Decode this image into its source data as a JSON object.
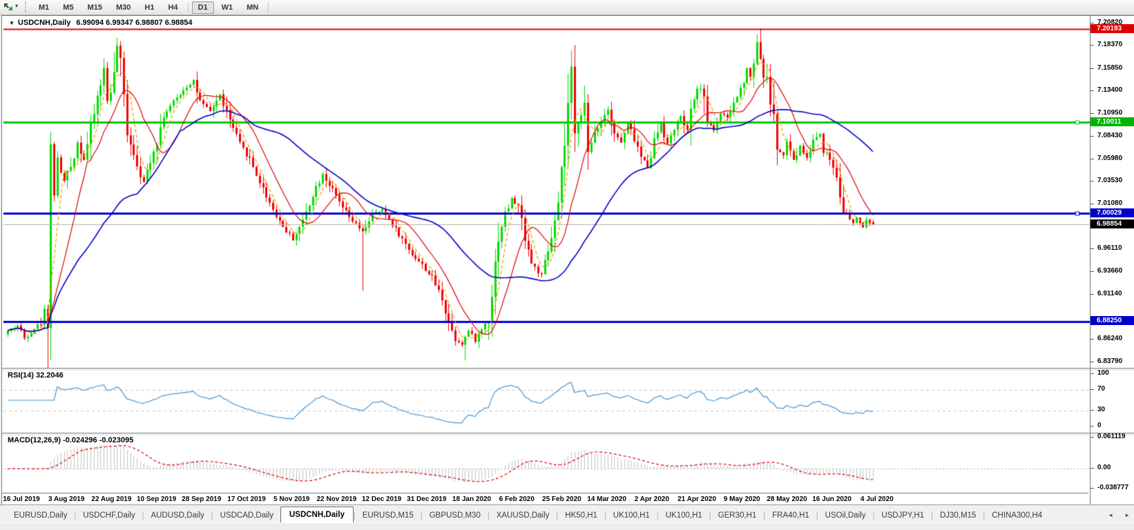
{
  "toolbar": {
    "chart_tool_icon": "chart-shift-arrows",
    "dropdown_caret": "▾",
    "timeframes": [
      "M1",
      "M5",
      "M15",
      "M30",
      "H1",
      "H4",
      "D1",
      "W1",
      "MN"
    ],
    "active_timeframe": "D1"
  },
  "chart": {
    "dropdown_marker": "▼",
    "title_symbol": "USDCNH,Daily",
    "title_ohlc": "6.99094 6.99347 6.98807 6.98854",
    "price_axis_ticks": [
      "7.20820",
      "7.18370",
      "7.15850",
      "7.13400",
      "7.10950",
      "7.08430",
      "7.05980",
      "7.03530",
      "7.01080",
      "6.96110",
      "6.93660",
      "6.91140",
      "6.86240",
      "6.83790"
    ],
    "price_badges": [
      {
        "label": "7.20193",
        "price": 7.20193,
        "bg": "#dd0000"
      },
      {
        "label": "7.10011",
        "price": 7.10011,
        "bg": "#00b400"
      },
      {
        "label": "7.00029",
        "price": 7.00029,
        "bg": "#0000c8"
      },
      {
        "label": "6.98854",
        "price": 6.98854,
        "bg": "#000000"
      },
      {
        "label": "6.88250",
        "price": 6.8825,
        "bg": "#0000c8"
      }
    ],
    "date_labels": [
      "16 Jul 2019",
      "3 Aug 2019",
      "22 Aug 2019",
      "10 Sep 2019",
      "28 Sep 2019",
      "17 Oct 2019",
      "5 Nov 2019",
      "22 Nov 2019",
      "12 Dec 2019",
      "31 Dec 2019",
      "18 Jan 2020",
      "6 Feb 2020",
      "25 Feb 2020",
      "14 Mar 2020",
      "2 Apr 2020",
      "21 Apr 2020",
      "9 May 2020",
      "28 May 2020",
      "16 Jun 2020",
      "4 Jul 2020"
    ]
  },
  "rsi_panel": {
    "label": "RSI(14) 32.2046",
    "ticks": [
      "100",
      "70",
      "30",
      "0"
    ],
    "level_values": [
      70,
      30
    ],
    "line_color": "#3f93d6",
    "current_value": 32.2046
  },
  "macd_panel": {
    "label": "MACD(12,26,9) -0.024296 -0.023095",
    "ticks": [
      "0.061119",
      "0.00",
      "-0.038777"
    ],
    "histogram_color": "#c2c2c2",
    "signal_color": "#dd0000",
    "current_values": [
      -0.024296,
      -0.023095
    ]
  },
  "tabs": {
    "items": [
      "EURUSD,Daily",
      "USDCHF,Daily",
      "AUDUSD,Daily",
      "USDCAD,Daily",
      "USDCNH,Daily",
      "EURUSD,M15",
      "GBPUSD,M30",
      "XAUUSD,Daily",
      "HK50,H1",
      "UK100,H1",
      "UK100,H1",
      "GER30,H1",
      "FRA40,H1",
      "USOil,Daily",
      "USDJPY,H1",
      "DJ30,M15",
      "CHINA300,H4"
    ],
    "active_index": 4,
    "scroll_left": "◄",
    "scroll_right": "►"
  },
  "chart_data": {
    "type": "candlestick",
    "symbol": "USDCNH",
    "timeframe": "Daily",
    "visible_price_range": [
      6.8316,
      7.215
    ],
    "num_candles": 262,
    "last_candle_ohlc": [
      6.99094,
      6.99347,
      6.98807,
      6.98854
    ],
    "up_color": "#00dd00",
    "down_color": "#f40000",
    "close_path_anchors": [
      [
        0,
        6.872
      ],
      [
        3,
        6.878
      ],
      [
        5,
        6.864
      ],
      [
        8,
        6.875
      ],
      [
        10,
        6.881
      ],
      [
        12,
        6.905
      ],
      [
        13,
        7.072
      ],
      [
        14,
        7.022
      ],
      [
        15,
        7.058
      ],
      [
        17,
        7.036
      ],
      [
        19,
        7.052
      ],
      [
        21,
        7.078
      ],
      [
        23,
        7.06
      ],
      [
        25,
        7.092
      ],
      [
        27,
        7.128
      ],
      [
        29,
        7.158
      ],
      [
        30,
        7.124
      ],
      [
        32,
        7.15
      ],
      [
        33,
        7.184
      ],
      [
        34,
        7.16
      ],
      [
        36,
        7.092
      ],
      [
        38,
        7.066
      ],
      [
        41,
        7.034
      ],
      [
        43,
        7.06
      ],
      [
        45,
        7.08
      ],
      [
        47,
        7.108
      ],
      [
        50,
        7.122
      ],
      [
        53,
        7.136
      ],
      [
        56,
        7.146
      ],
      [
        58,
        7.122
      ],
      [
        61,
        7.112
      ],
      [
        64,
        7.13
      ],
      [
        67,
        7.102
      ],
      [
        70,
        7.076
      ],
      [
        73,
        7.06
      ],
      [
        76,
        7.035
      ],
      [
        80,
        7.005
      ],
      [
        83,
        6.986
      ],
      [
        86,
        6.972
      ],
      [
        89,
        6.992
      ],
      [
        92,
        7.022
      ],
      [
        95,
        7.044
      ],
      [
        97,
        7.032
      ],
      [
        100,
        7.012
      ],
      [
        103,
        6.996
      ],
      [
        107,
        6.98
      ],
      [
        110,
        7.0
      ],
      [
        113,
        7.004
      ],
      [
        116,
        6.989
      ],
      [
        119,
        6.972
      ],
      [
        122,
        6.956
      ],
      [
        125,
        6.944
      ],
      [
        128,
        6.93
      ],
      [
        131,
        6.908
      ],
      [
        133,
        6.882
      ],
      [
        135,
        6.863
      ],
      [
        137,
        6.858
      ],
      [
        139,
        6.872
      ],
      [
        141,
        6.861
      ],
      [
        143,
        6.874
      ],
      [
        145,
        6.886
      ],
      [
        147,
        6.945
      ],
      [
        148,
        6.975
      ],
      [
        150,
        7.0
      ],
      [
        152,
        7.016
      ],
      [
        154,
        7.008
      ],
      [
        156,
        6.976
      ],
      [
        158,
        6.946
      ],
      [
        161,
        6.932
      ],
      [
        163,
        6.958
      ],
      [
        166,
        7.006
      ],
      [
        168,
        7.075
      ],
      [
        169,
        7.118
      ],
      [
        170,
        7.154
      ],
      [
        171,
        7.082
      ],
      [
        172,
        7.104
      ],
      [
        174,
        7.118
      ],
      [
        175,
        7.062
      ],
      [
        177,
        7.09
      ],
      [
        179,
        7.102
      ],
      [
        181,
        7.116
      ],
      [
        183,
        7.088
      ],
      [
        185,
        7.078
      ],
      [
        187,
        7.098
      ],
      [
        189,
        7.082
      ],
      [
        191,
        7.062
      ],
      [
        193,
        7.052
      ],
      [
        195,
        7.08
      ],
      [
        197,
        7.1
      ],
      [
        199,
        7.076
      ],
      [
        201,
        7.094
      ],
      [
        203,
        7.106
      ],
      [
        205,
        7.09
      ],
      [
        207,
        7.128
      ],
      [
        209,
        7.14
      ],
      [
        211,
        7.102
      ],
      [
        213,
        7.092
      ],
      [
        215,
        7.11
      ],
      [
        217,
        7.104
      ],
      [
        219,
        7.121
      ],
      [
        221,
        7.136
      ],
      [
        223,
        7.16
      ],
      [
        224,
        7.149
      ],
      [
        226,
        7.188
      ],
      [
        228,
        7.152
      ],
      [
        229,
        7.146
      ],
      [
        231,
        7.104
      ],
      [
        232,
        7.072
      ],
      [
        234,
        7.062
      ],
      [
        235,
        7.079
      ],
      [
        237,
        7.058
      ],
      [
        239,
        7.074
      ],
      [
        241,
        7.061
      ],
      [
        243,
        7.081
      ],
      [
        245,
        7.088
      ],
      [
        246,
        7.071
      ],
      [
        248,
        7.06
      ],
      [
        250,
        7.042
      ],
      [
        252,
        7.005
      ],
      [
        253,
        6.998
      ],
      [
        255,
        6.989
      ],
      [
        256,
        6.996
      ],
      [
        258,
        6.985
      ],
      [
        259,
        6.992
      ],
      [
        261,
        6.98854
      ]
    ],
    "wick_overrides": [
      [
        13,
        "low",
        6.902
      ],
      [
        33,
        "high",
        7.1925
      ],
      [
        107,
        "low",
        6.916
      ],
      [
        138,
        "low",
        6.8395
      ],
      [
        170,
        "high",
        7.166
      ],
      [
        226,
        "high",
        7.1965
      ]
    ],
    "horizontal_lines": [
      {
        "price": 7.20193,
        "color": "#dd0000",
        "width": 2
      },
      {
        "price": 7.10011,
        "color": "#00ca00",
        "width": 3,
        "marker": true
      },
      {
        "price": 7.00029,
        "color": "#0000d4",
        "width": 3,
        "marker": true
      },
      {
        "price": 6.98854,
        "color": "#b4b4b4",
        "width": 1
      },
      {
        "price": 6.8825,
        "color": "#0000d4",
        "width": 3
      }
    ],
    "moving_averages": [
      {
        "period": 5,
        "color": "#eb9c00",
        "style": "dashed"
      },
      {
        "period": 12,
        "color": "#dd0000",
        "style": "solid"
      },
      {
        "period": 40,
        "color": "#0000c8",
        "style": "solid"
      }
    ],
    "indicators": [
      {
        "name": "RSI",
        "period": 14,
        "value": 32.2046,
        "range": [
          0,
          100
        ],
        "levels": [
          70,
          30
        ]
      },
      {
        "name": "MACD",
        "fast": 12,
        "slow": 26,
        "signal": 9,
        "values": [
          -0.024296,
          -0.023095
        ],
        "axis_range": [
          -0.038777,
          0.061119
        ]
      }
    ]
  }
}
